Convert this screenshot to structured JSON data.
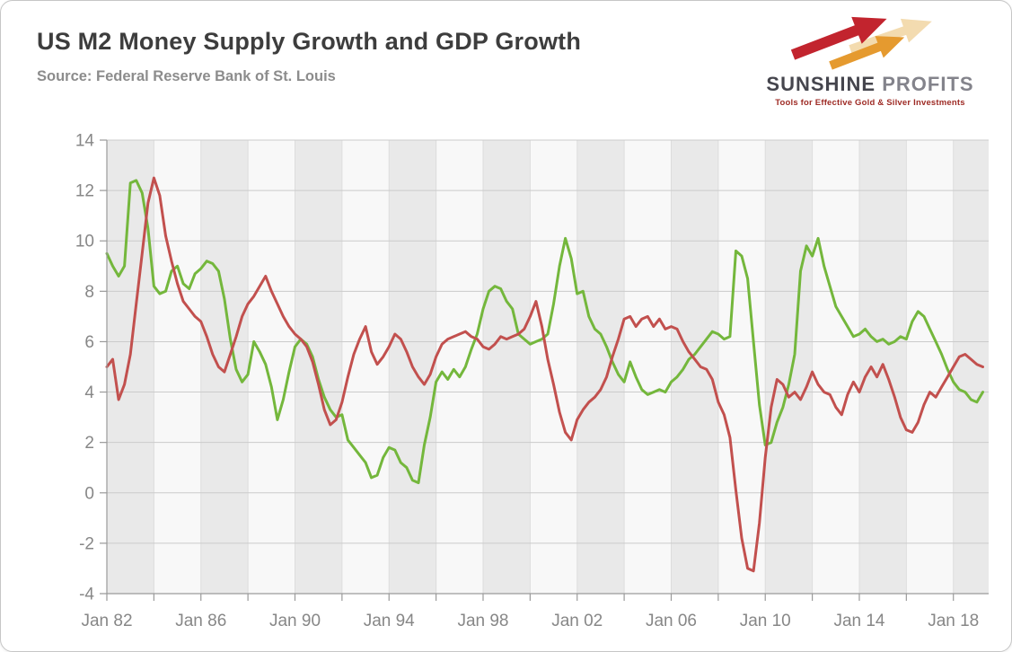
{
  "header": {
    "title": "US M2 Money Supply Growth and GDP Growth",
    "source": "Source: Federal Reserve Bank of St. Louis"
  },
  "logo": {
    "word1": "SUNSHINE",
    "word2": "PROFITS",
    "tagline": "Tools for Effective Gold & Silver Investments",
    "arrow_colors": [
      "#f1d5a2",
      "#c2242e",
      "#e59a2f"
    ]
  },
  "chart_data": {
    "type": "line",
    "title": "US M2 Money Supply Growth and GDP Growth",
    "source": "Federal Reserve Bank of St. Louis",
    "x_start": 1982.0,
    "x_step": 0.25,
    "x_range": [
      1982,
      2019.5
    ],
    "y_range": [
      -4,
      14
    ],
    "y_ticks": [
      14,
      12,
      10,
      8,
      6,
      4,
      2,
      0,
      -2,
      -4
    ],
    "x_tick_years": [
      1982,
      1984,
      1986,
      1988,
      1990,
      1992,
      1994,
      1996,
      1998,
      2000,
      2002,
      2004,
      2006,
      2008,
      2010,
      2012,
      2014,
      2016,
      2018
    ],
    "x_label_years": [
      1982,
      1986,
      1990,
      1994,
      1998,
      2002,
      2006,
      2010,
      2014,
      2018
    ],
    "x_labels": [
      "Jan 82",
      "Jan 86",
      "Jan 90",
      "Jan 94",
      "Jan 98",
      "Jan 02",
      "Jan 06",
      "Jan 10",
      "Jan 14",
      "Jan 18"
    ],
    "grid": true,
    "legend": "none",
    "stripe_colors": [
      "#e9e9e9",
      "#f8f8f8"
    ],
    "grid_color": "#cbcbcb",
    "stripe_edge_color": "#dddddd",
    "axis_color": "#9a9a9a",
    "label_color": "#878787",
    "series": [
      {
        "name": "M2 Money Supply Growth",
        "color": "#74b73c",
        "values": [
          9.5,
          9.0,
          8.6,
          9.0,
          12.3,
          12.4,
          11.9,
          10.5,
          8.2,
          7.9,
          8.0,
          8.8,
          9.0,
          8.3,
          8.1,
          8.7,
          8.9,
          9.2,
          9.1,
          8.8,
          7.7,
          6.1,
          4.9,
          4.4,
          4.7,
          6.0,
          5.6,
          5.1,
          4.2,
          2.9,
          3.7,
          4.8,
          5.8,
          6.1,
          5.9,
          5.4,
          4.5,
          3.8,
          3.3,
          3.0,
          3.1,
          2.1,
          1.8,
          1.5,
          1.2,
          0.6,
          0.7,
          1.4,
          1.8,
          1.7,
          1.2,
          1.0,
          0.5,
          0.4,
          1.9,
          3.0,
          4.4,
          4.8,
          4.5,
          4.9,
          4.6,
          5.0,
          5.7,
          6.3,
          7.3,
          8.0,
          8.2,
          8.1,
          7.6,
          7.3,
          6.3,
          6.1,
          5.9,
          6.0,
          6.1,
          6.3,
          7.5,
          9.0,
          10.1,
          9.3,
          7.9,
          8.0,
          7.0,
          6.5,
          6.3,
          5.8,
          5.2,
          4.7,
          4.4,
          5.2,
          4.6,
          4.1,
          3.9,
          4.0,
          4.1,
          4.0,
          4.4,
          4.6,
          4.9,
          5.3,
          5.5,
          5.8,
          6.1,
          6.4,
          6.3,
          6.1,
          6.2,
          9.6,
          9.4,
          8.5,
          6.0,
          3.5,
          1.9,
          2.0,
          2.8,
          3.4,
          4.3,
          5.5,
          8.8,
          9.8,
          9.4,
          10.1,
          9.0,
          8.2,
          7.4,
          7.0,
          6.6,
          6.2,
          6.3,
          6.5,
          6.2,
          6.0,
          6.1,
          5.9,
          6.0,
          6.2,
          6.1,
          6.8,
          7.2,
          7.0,
          6.5,
          6.0,
          5.5,
          4.9,
          4.4,
          4.1,
          4.0,
          3.7,
          3.6,
          4.0
        ]
      },
      {
        "name": "GDP Growth",
        "color": "#c2504e",
        "values": [
          5.0,
          5.3,
          3.7,
          4.3,
          5.5,
          7.5,
          9.5,
          11.5,
          12.5,
          11.8,
          10.2,
          9.2,
          8.3,
          7.6,
          7.3,
          7.0,
          6.8,
          6.2,
          5.5,
          5.0,
          4.8,
          5.5,
          6.2,
          7.0,
          7.5,
          7.8,
          8.2,
          8.6,
          8.0,
          7.5,
          7.0,
          6.6,
          6.3,
          6.1,
          5.8,
          5.2,
          4.3,
          3.3,
          2.7,
          2.9,
          3.6,
          4.6,
          5.5,
          6.1,
          6.6,
          5.6,
          5.1,
          5.4,
          5.8,
          6.3,
          6.1,
          5.6,
          5.0,
          4.6,
          4.3,
          4.7,
          5.4,
          5.9,
          6.1,
          6.2,
          6.3,
          6.4,
          6.2,
          6.1,
          5.8,
          5.7,
          5.9,
          6.2,
          6.1,
          6.2,
          6.3,
          6.5,
          7.0,
          7.6,
          6.6,
          5.3,
          4.3,
          3.2,
          2.4,
          2.1,
          2.9,
          3.3,
          3.6,
          3.8,
          4.1,
          4.6,
          5.4,
          6.1,
          6.9,
          7.0,
          6.6,
          6.9,
          7.0,
          6.6,
          6.9,
          6.5,
          6.6,
          6.5,
          6.0,
          5.6,
          5.3,
          5.0,
          4.9,
          4.5,
          3.6,
          3.1,
          2.2,
          0.1,
          -1.8,
          -3.0,
          -3.1,
          -1.2,
          1.4,
          3.4,
          4.5,
          4.3,
          3.8,
          4.0,
          3.7,
          4.2,
          4.8,
          4.3,
          4.0,
          3.9,
          3.4,
          3.1,
          3.9,
          4.4,
          4.0,
          4.6,
          5.0,
          4.6,
          5.1,
          4.5,
          3.8,
          3.0,
          2.5,
          2.4,
          2.8,
          3.5,
          4.0,
          3.8,
          4.2,
          4.6,
          5.0,
          5.4,
          5.5,
          5.3,
          5.1,
          5.0
        ]
      }
    ]
  }
}
